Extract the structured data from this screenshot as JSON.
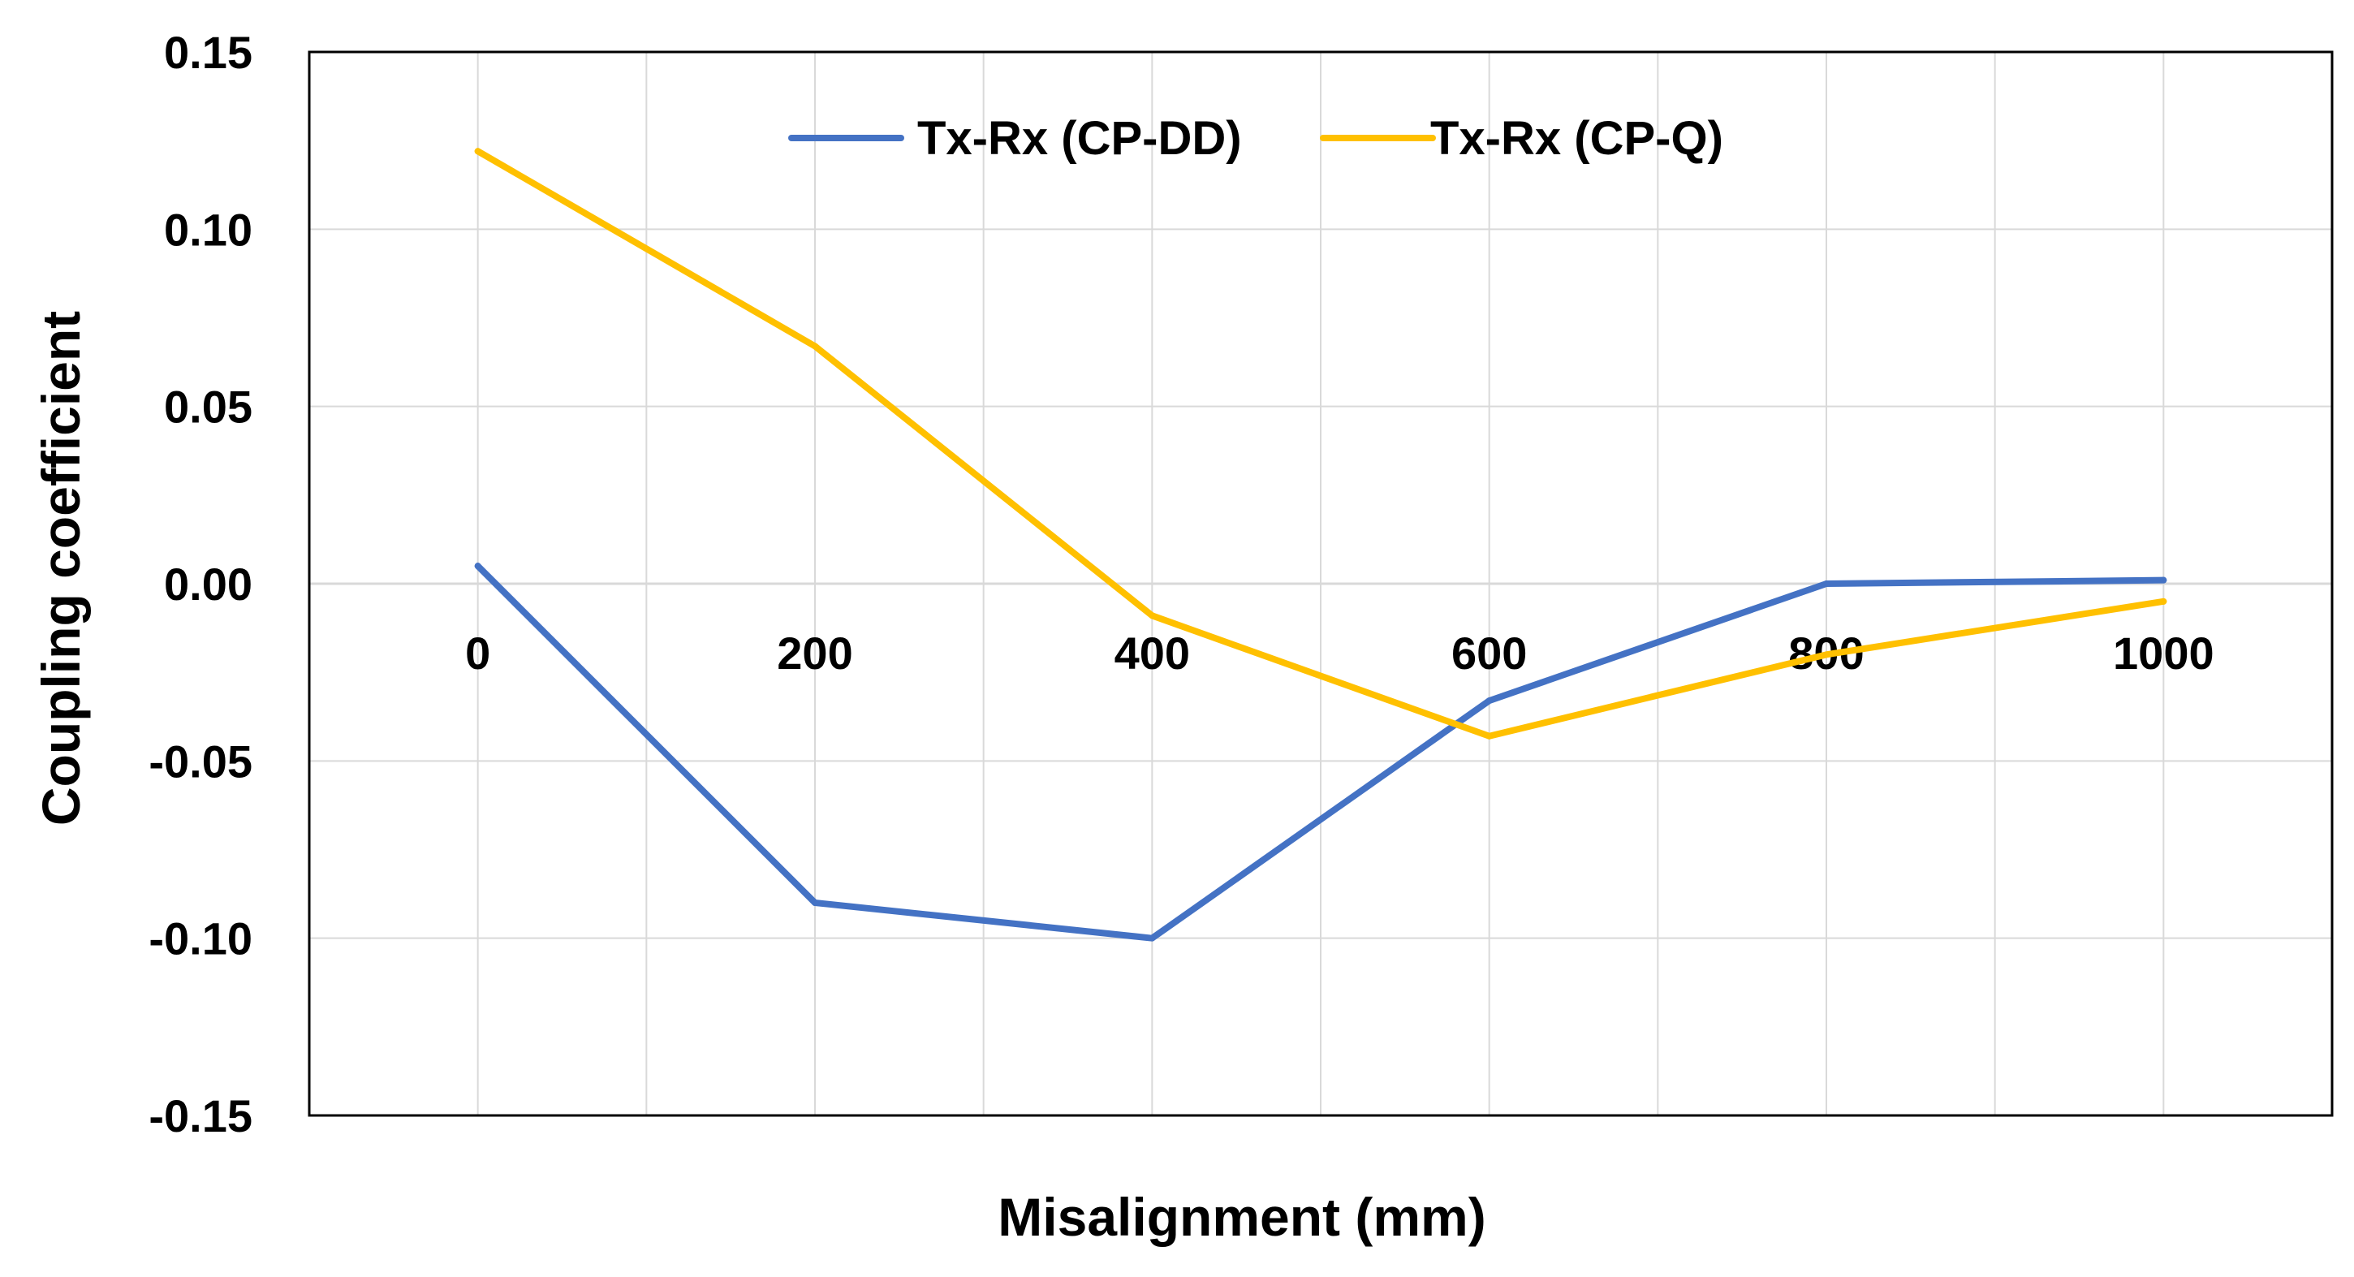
{
  "chart_data": {
    "type": "line",
    "title": "",
    "xlabel": "Misalignment (mm)",
    "ylabel": "Coupling coefficient",
    "x": [
      0,
      200,
      400,
      600,
      800,
      1000
    ],
    "x_tick_labels": [
      "0",
      "200",
      "400",
      "600",
      "800",
      "1000"
    ],
    "xlim": [
      -100,
      1100
    ],
    "ylim": [
      -0.15,
      0.15
    ],
    "y_ticks": [
      0.15,
      0.1,
      0.05,
      0.0,
      -0.05,
      -0.1,
      -0.15
    ],
    "y_tick_labels": [
      "0.15",
      "0.10",
      "0.05",
      "0.00",
      "-0.05",
      "-0.10",
      "-0.15"
    ],
    "grid": true,
    "legend_position": "top-center",
    "series": [
      {
        "name": "Tx-Rx (CP-DD)",
        "color": "#4472c4",
        "values": [
          0.005,
          -0.09,
          -0.1,
          -0.033,
          0.0,
          0.001
        ]
      },
      {
        "name": "Tx-Rx (CP-Q)",
        "color": "#ffc000",
        "values": [
          0.122,
          0.067,
          -0.009,
          -0.043,
          -0.02,
          -0.005
        ]
      }
    ]
  }
}
